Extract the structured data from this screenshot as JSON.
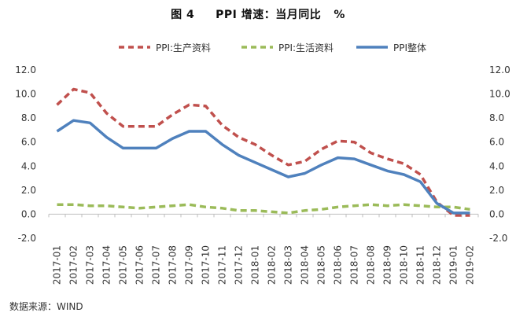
{
  "title": "图 4     PPI 增速：当月同比   %",
  "source": "数据来源：WIND",
  "chart_data": {
    "type": "line",
    "title": "图 4     PPI 增速：当月同比   %",
    "xlabel": "",
    "ylabel": "",
    "ylim": [
      -2.0,
      12.0
    ],
    "yticks": [
      "12.0",
      "10.0",
      "8.0",
      "6.0",
      "4.0",
      "2.0",
      "0.0",
      "-2.0"
    ],
    "legend_position": "top",
    "categories": [
      "2017-01",
      "2017-02",
      "2017-03",
      "2017-04",
      "2017-05",
      "2017-06",
      "2017-07",
      "2017-08",
      "2017-09",
      "2017-10",
      "2017-11",
      "2017-12",
      "2018-01",
      "2018-02",
      "2018-03",
      "2018-04",
      "2018-05",
      "2018-06",
      "2018-07",
      "2018-08",
      "2018-09",
      "2018-10",
      "2018-11",
      "2018-12",
      "2019-01",
      "2019-02"
    ],
    "series": [
      {
        "name": "PPI:生产资料",
        "color": "#c0504d",
        "dash": "dashed",
        "values": [
          9.1,
          10.4,
          10.1,
          8.4,
          7.3,
          7.3,
          7.3,
          8.3,
          9.1,
          9.0,
          7.4,
          6.4,
          5.8,
          4.9,
          4.1,
          4.4,
          5.4,
          6.1,
          6.0,
          5.1,
          4.6,
          4.2,
          3.3,
          1.0,
          -0.1,
          -0.1
        ]
      },
      {
        "name": "PPI:生活资料",
        "color": "#9bbb59",
        "dash": "dashed",
        "values": [
          0.8,
          0.8,
          0.7,
          0.7,
          0.6,
          0.5,
          0.6,
          0.7,
          0.8,
          0.6,
          0.5,
          0.3,
          0.3,
          0.2,
          0.1,
          0.3,
          0.4,
          0.6,
          0.7,
          0.8,
          0.7,
          0.8,
          0.7,
          0.6,
          0.6,
          0.4
        ]
      },
      {
        "name": "PPI整体",
        "color": "#4f81bd",
        "dash": "solid",
        "values": [
          6.9,
          7.8,
          7.6,
          6.4,
          5.5,
          5.5,
          5.5,
          6.3,
          6.9,
          6.9,
          5.8,
          4.9,
          4.3,
          3.7,
          3.1,
          3.4,
          4.1,
          4.7,
          4.6,
          4.1,
          3.6,
          3.3,
          2.7,
          0.9,
          0.1,
          0.1
        ]
      }
    ]
  }
}
